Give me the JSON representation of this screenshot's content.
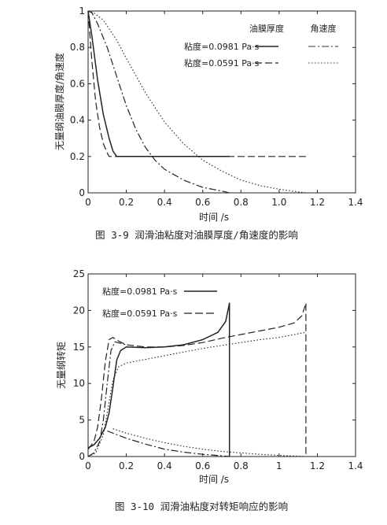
{
  "chart_data": [
    {
      "type": "line",
      "caption": "图 3-9 润滑油粘度对油膜厚度/角速度的影响",
      "xlabel": "时间 /s",
      "ylabel": "无量纲油膜厚度/角速度",
      "xlim": [
        0,
        1.4
      ],
      "ylim": [
        0,
        1
      ],
      "xticks": [
        "0",
        "0.2",
        "0.4",
        "0.6",
        "0.8",
        "1.0",
        "1.2",
        "1.4"
      ],
      "yticks": [
        "0",
        "0.2",
        "0.4",
        "0.6",
        "0.8",
        "1"
      ],
      "legend_headers": [
        "油膜厚度",
        "角速度"
      ],
      "legend_rows": [
        "粘度=0.0981 Pa·s",
        "粘度=0.0591 Pa·s"
      ],
      "legend_position": "top-right",
      "grid": false,
      "series": [
        {
          "style": "solid",
          "points": [
            [
              0,
              1
            ],
            [
              0.02,
              0.86
            ],
            [
              0.05,
              0.62
            ],
            [
              0.08,
              0.43
            ],
            [
              0.11,
              0.3
            ],
            [
              0.13,
              0.23
            ],
            [
              0.15,
              0.2
            ],
            [
              0.3,
              0.2
            ],
            [
              0.5,
              0.2
            ],
            [
              0.74,
              0.2
            ]
          ]
        },
        {
          "style": "dashed",
          "points": [
            [
              0,
              1
            ],
            [
              0.02,
              0.72
            ],
            [
              0.04,
              0.5
            ],
            [
              0.06,
              0.36
            ],
            [
              0.08,
              0.27
            ],
            [
              0.1,
              0.22
            ],
            [
              0.11,
              0.2
            ],
            [
              0.3,
              0.2
            ],
            [
              0.6,
              0.2
            ],
            [
              0.9,
              0.2
            ],
            [
              1.14,
              0.2
            ]
          ]
        },
        {
          "style": "dashdot",
          "points": [
            [
              0,
              1
            ],
            [
              0.02,
              0.99
            ],
            [
              0.05,
              0.93
            ],
            [
              0.1,
              0.8
            ],
            [
              0.15,
              0.64
            ],
            [
              0.2,
              0.48
            ],
            [
              0.25,
              0.35
            ],
            [
              0.3,
              0.25
            ],
            [
              0.35,
              0.18
            ],
            [
              0.4,
              0.13
            ],
            [
              0.5,
              0.07
            ],
            [
              0.6,
              0.03
            ],
            [
              0.7,
              0.01
            ],
            [
              0.74,
              0
            ]
          ]
        },
        {
          "style": "dotted",
          "points": [
            [
              0,
              1
            ],
            [
              0.03,
              0.99
            ],
            [
              0.08,
              0.95
            ],
            [
              0.15,
              0.84
            ],
            [
              0.2,
              0.74
            ],
            [
              0.3,
              0.55
            ],
            [
              0.4,
              0.39
            ],
            [
              0.5,
              0.27
            ],
            [
              0.6,
              0.18
            ],
            [
              0.7,
              0.12
            ],
            [
              0.8,
              0.07
            ],
            [
              0.9,
              0.04
            ],
            [
              1.0,
              0.02
            ],
            [
              1.1,
              0.005
            ],
            [
              1.14,
              0
            ]
          ]
        }
      ]
    },
    {
      "type": "line",
      "caption": "图 3-10 润滑油粘度对转矩响应的影响",
      "xlabel": "时间 /s",
      "ylabel": "无量纲转矩",
      "xlim": [
        0,
        1.4
      ],
      "ylim": [
        0,
        25
      ],
      "xticks": [
        "0",
        "0.2",
        "0.4",
        "0.6",
        "0.8",
        "1",
        "1.2",
        "1.4"
      ],
      "yticks": [
        "0",
        "5",
        "10",
        "15",
        "20",
        "25"
      ],
      "legend_rows": [
        "粘度=0.0981 Pa·s",
        "粘度=0.0591 Pa·s"
      ],
      "legend_position": "top-left",
      "grid": false,
      "series": [
        {
          "style": "solid",
          "points": [
            [
              0,
              1.2
            ],
            [
              0.03,
              1.6
            ],
            [
              0.06,
              2.5
            ],
            [
              0.09,
              4.0
            ],
            [
              0.11,
              6.0
            ],
            [
              0.13,
              9.5
            ],
            [
              0.15,
              13.2
            ],
            [
              0.17,
              14.5
            ],
            [
              0.2,
              15.0
            ],
            [
              0.3,
              14.9
            ],
            [
              0.4,
              15.0
            ],
            [
              0.5,
              15.3
            ],
            [
              0.6,
              16.0
            ],
            [
              0.68,
              17.0
            ],
            [
              0.72,
              18.5
            ],
            [
              0.74,
              21.0
            ],
            [
              0.74,
              0
            ]
          ]
        },
        {
          "style": "dashed",
          "points": [
            [
              0,
              1.0
            ],
            [
              0.03,
              2.0
            ],
            [
              0.05,
              4.0
            ],
            [
              0.07,
              8.0
            ],
            [
              0.09,
              13.0
            ],
            [
              0.11,
              16.0
            ],
            [
              0.13,
              16.3
            ],
            [
              0.16,
              15.8
            ],
            [
              0.2,
              15.3
            ],
            [
              0.3,
              15.0
            ],
            [
              0.4,
              15.0
            ],
            [
              0.5,
              15.2
            ],
            [
              0.6,
              15.6
            ],
            [
              0.7,
              16.2
            ],
            [
              0.8,
              16.7
            ],
            [
              0.9,
              17.2
            ],
            [
              1.0,
              17.7
            ],
            [
              1.08,
              18.3
            ],
            [
              1.12,
              19.3
            ],
            [
              1.14,
              21.0
            ],
            [
              1.14,
              0
            ]
          ]
        },
        {
          "style": "dashdot",
          "points": [
            [
              0,
              0
            ],
            [
              0.03,
              0.5
            ],
            [
              0.06,
              2.0
            ],
            [
              0.08,
              5.0
            ],
            [
              0.1,
              10.0
            ],
            [
              0.12,
              14.5
            ],
            [
              0.14,
              15.7
            ],
            [
              0.17,
              15.5
            ],
            [
              0.2,
              15.3
            ]
          ]
        },
        {
          "style": "dotted",
          "points": [
            [
              0,
              0
            ],
            [
              0.04,
              0.5
            ],
            [
              0.08,
              3.0
            ],
            [
              0.1,
              6.0
            ],
            [
              0.13,
              10.5
            ],
            [
              0.16,
              12.3
            ],
            [
              0.2,
              12.8
            ],
            [
              0.3,
              13.3
            ],
            [
              0.4,
              13.8
            ],
            [
              0.5,
              14.3
            ],
            [
              0.6,
              14.8
            ],
            [
              0.7,
              15.2
            ],
            [
              0.8,
              15.6
            ],
            [
              0.9,
              16.0
            ],
            [
              1.0,
              16.3
            ],
            [
              1.1,
              16.8
            ],
            [
              1.14,
              17.0
            ]
          ]
        },
        {
          "style": "dashdot",
          "points": [
            [
              0.1,
              3.5
            ],
            [
              0.2,
              2.5
            ],
            [
              0.3,
              1.7
            ],
            [
              0.4,
              1.0
            ],
            [
              0.5,
              0.6
            ],
            [
              0.6,
              0.3
            ],
            [
              0.7,
              0.1
            ],
            [
              0.74,
              0
            ]
          ]
        },
        {
          "style": "dotted",
          "points": [
            [
              0.13,
              3.8
            ],
            [
              0.2,
              3.2
            ],
            [
              0.3,
              2.5
            ],
            [
              0.4,
              1.9
            ],
            [
              0.5,
              1.4
            ],
            [
              0.6,
              1.0
            ],
            [
              0.7,
              0.7
            ],
            [
              0.8,
              0.5
            ],
            [
              0.9,
              0.3
            ],
            [
              1.0,
              0.15
            ],
            [
              1.1,
              0.05
            ],
            [
              1.14,
              0
            ]
          ]
        }
      ]
    }
  ]
}
